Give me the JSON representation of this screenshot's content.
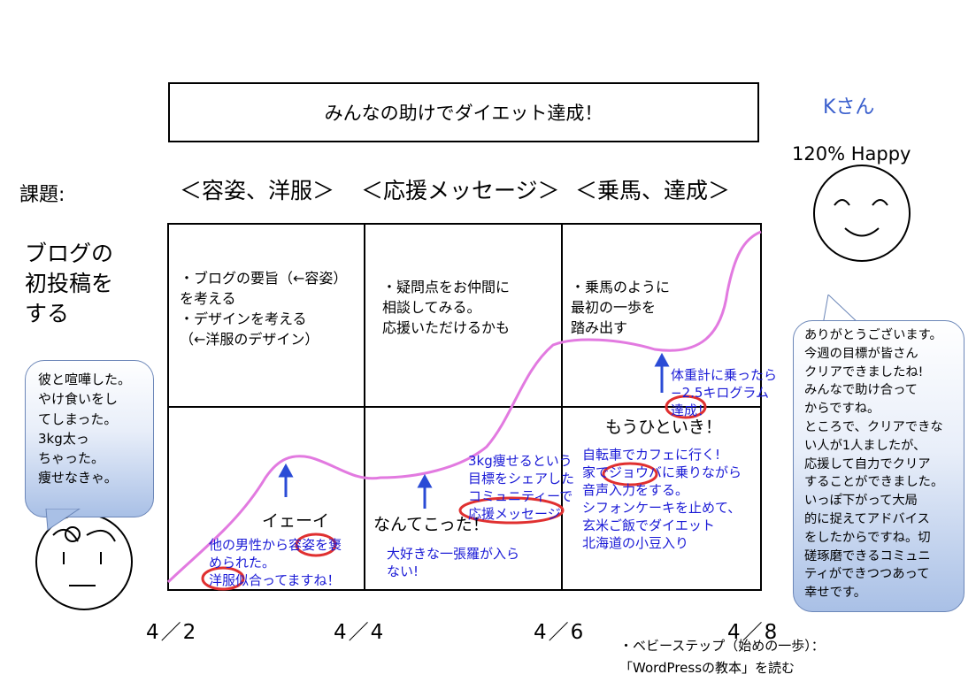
{
  "title": "みんなの助けでダイエット達成！",
  "person": {
    "name": "Kさん",
    "status": "120% Happy"
  },
  "kadai_label": "課題:",
  "sections": [
    "＜容姿、洋服＞",
    "＜応援メッセージ＞",
    "＜乗馬、達成＞"
  ],
  "side_title": "ブログの\n初投稿を\nする",
  "top_cells": [
    "・ブログの要旨（←容姿）\nを考える\n・デザインを考える\n（←洋服のデザイン）",
    "・疑問点をお仲間に\n相談してみる。\n応援いただけるかも",
    "・乗馬のように\n最初の一歩を\n踏み出す"
  ],
  "mid_labels": [
    "イェーイ",
    "なんてこった！",
    "もうひといき！"
  ],
  "blue_notes": {
    "col1": "他の男性から容姿を褒\nめられた。\n洋服似合ってますね！",
    "col2": "大好きな一張羅が入ら\nない!",
    "col2_up": "3kg痩せるという\n目標をシェアした\nコミュニティーで\n応援メッセージ",
    "col3": "自転車でカフェに行く!\n家でジョウバに乗りながら\n音声入力をする。\nシフォンケーキを止めて、\n玄米ご飯でダイエット\n北海道の小豆入り",
    "col3_up": "体重計に乗ったら\n−2.5キログラム\n達成！"
  },
  "left_bubble": "彼と喧嘩した。\nやけ食いをし\nてしまった。\n3kg太っ\nちゃった。\n痩せなきゃ。",
  "right_bubble": "ありがとうございます。\n今週の目標が皆さん\nクリアできましたね!\nみんなで助け合って\nからですね。\nところで、クリアできな\nい人が1人ましたが、\n応援して自力でクリア\nすることができました。\nいっぽ下がって大局\n的に捉えてアドバイス\nをしたからですね。切\n磋琢磨できるコミュニ\nティができつつあって\n幸せです。",
  "dates": [
    "4／2",
    "4／4",
    "4／6",
    "4／8"
  ],
  "footnote": "・ベビーステップ（始めの一歩）：\n「WordPressの教本」を読む",
  "colors": {
    "curve": "#e27ae0",
    "blue_text": "#1a1ad6",
    "circle": "#e03030",
    "name": "#3a5fcd"
  }
}
